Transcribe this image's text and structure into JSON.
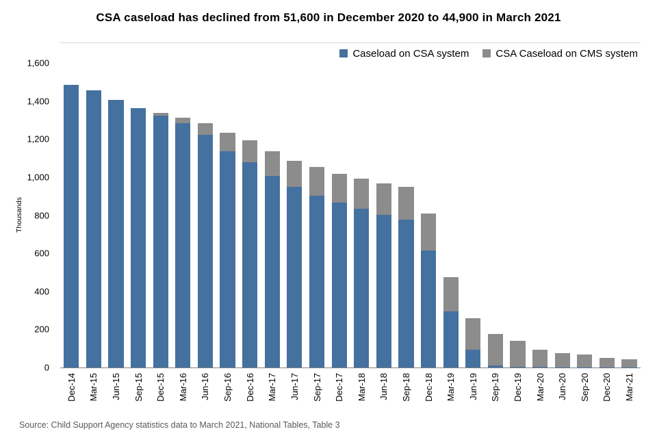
{
  "title": "CSA caseload has declined from 51,600 in December 2020 to 44,900 in March 2021",
  "source": "Source: Child Support Agency statistics data to March 2021, National Tables, Table 3",
  "colors": {
    "csa_blue": "#44719F",
    "cms_gray": "#8C8C8C",
    "axis_line": "#7f7f7f"
  },
  "legend": [
    {
      "label": "Caseload on CSA system",
      "color": "#44719F"
    },
    {
      "label": "CSA Caseload on CMS system",
      "color": "#8C8C8C"
    }
  ],
  "y_axis": {
    "label": "Thousands",
    "ticks": [
      "0",
      "200",
      "400",
      "600",
      "800",
      "1,000",
      "1,200",
      "1,400",
      "1,600"
    ]
  },
  "chart_data": {
    "type": "bar",
    "stacked": true,
    "title": "CSA caseload has declined from 51,600 in December 2020 to 44,900 in March 2021",
    "xlabel": "",
    "ylabel": "Thousands",
    "ylim": [
      0,
      1600
    ],
    "grid": false,
    "legend_position": "top-right",
    "categories": [
      "Dec-14",
      "Mar-15",
      "Jun-15",
      "Sep-15",
      "Dec-15",
      "Mar-16",
      "Jun-16",
      "Sep-16",
      "Dec-16",
      "Mar-17",
      "Jun-17",
      "Sep-17",
      "Dec-17",
      "Mar-18",
      "Jun-18",
      "Sep-18",
      "Dec-18",
      "Mar-19",
      "Jun-19",
      "Sep-19",
      "Dec-19",
      "Mar-20",
      "Jun-20",
      "Sep-20",
      "Dec-20",
      "Mar-21"
    ],
    "series": [
      {
        "name": "Caseload on CSA system",
        "color": "#44719F",
        "values": [
          1490,
          1460,
          1410,
          1365,
          1325,
          1285,
          1225,
          1140,
          1080,
          1010,
          950,
          905,
          870,
          835,
          805,
          780,
          615,
          295,
          95,
          10,
          3,
          2,
          1,
          1,
          0.6,
          0.4
        ]
      },
      {
        "name": "CSA Caseload on CMS system",
        "color": "#8C8C8C",
        "values": [
          0,
          0,
          0,
          0,
          15,
          30,
          60,
          95,
          115,
          130,
          140,
          150,
          150,
          160,
          165,
          170,
          195,
          180,
          165,
          165,
          137,
          93,
          74,
          69,
          51,
          44.5
        ]
      }
    ]
  }
}
